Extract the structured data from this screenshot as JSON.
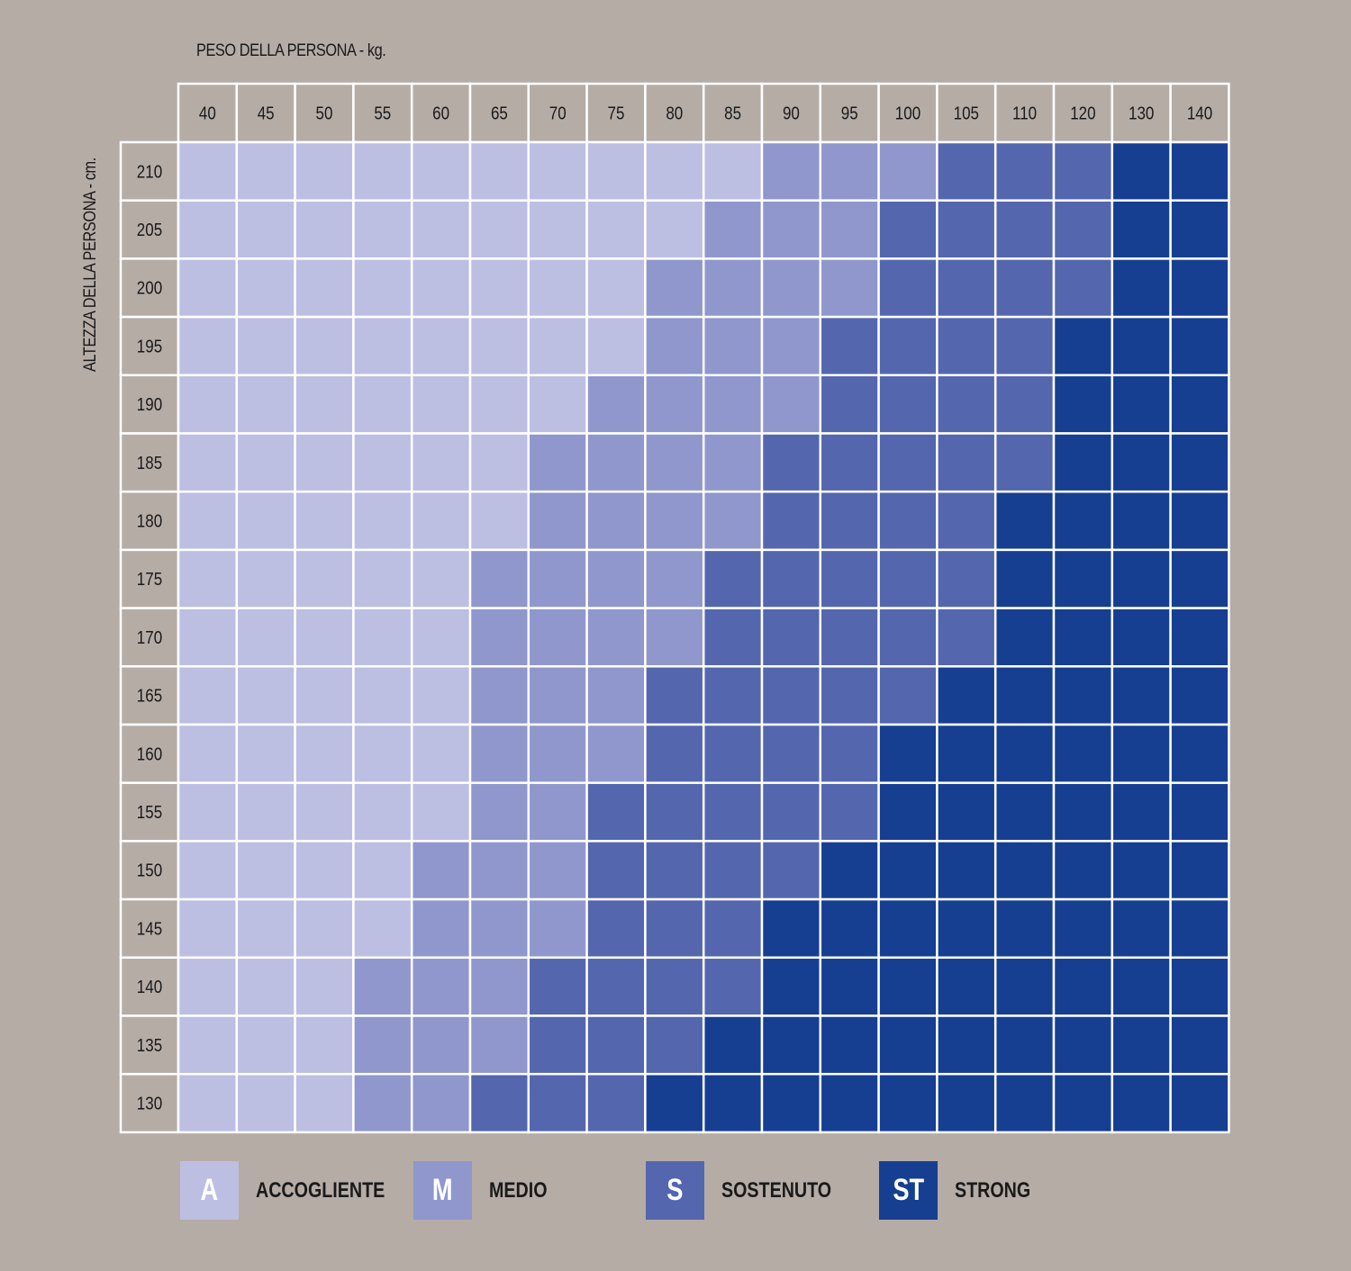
{
  "chart_data": {
    "type": "heatmap",
    "xlabel": "PESO DELLA PERSONA - kg.",
    "ylabel": "ALTEZZA DELLA PERSONA - cm.",
    "x": [
      "40",
      "45",
      "50",
      "55",
      "60",
      "65",
      "70",
      "75",
      "80",
      "85",
      "90",
      "95",
      "100",
      "105",
      "110",
      "120",
      "130",
      "140"
    ],
    "y": [
      "210",
      "205",
      "200",
      "195",
      "190",
      "185",
      "180",
      "175",
      "170",
      "165",
      "160",
      "155",
      "150",
      "145",
      "140",
      "135",
      "130"
    ],
    "levels": [
      {
        "code": "A",
        "label": "ACCOGLIENTE",
        "color": "#bcbfe2"
      },
      {
        "code": "M",
        "label": "MEDIO",
        "color": "#8f97cc"
      },
      {
        "code": "S",
        "label": "SOSTENUTO",
        "color": "#5466ae"
      },
      {
        "code": "ST",
        "label": "STRONG",
        "color": "#163f92"
      }
    ],
    "cells": [
      [
        "A",
        "A",
        "A",
        "A",
        "A",
        "A",
        "A",
        "A",
        "A",
        "A",
        "M",
        "M",
        "M",
        "S",
        "S",
        "S",
        "ST",
        "ST"
      ],
      [
        "A",
        "A",
        "A",
        "A",
        "A",
        "A",
        "A",
        "A",
        "A",
        "M",
        "M",
        "M",
        "S",
        "S",
        "S",
        "S",
        "ST",
        "ST"
      ],
      [
        "A",
        "A",
        "A",
        "A",
        "A",
        "A",
        "A",
        "A",
        "M",
        "M",
        "M",
        "M",
        "S",
        "S",
        "S",
        "S",
        "ST",
        "ST"
      ],
      [
        "A",
        "A",
        "A",
        "A",
        "A",
        "A",
        "A",
        "A",
        "M",
        "M",
        "M",
        "S",
        "S",
        "S",
        "S",
        "ST",
        "ST",
        "ST"
      ],
      [
        "A",
        "A",
        "A",
        "A",
        "A",
        "A",
        "A",
        "M",
        "M",
        "M",
        "M",
        "S",
        "S",
        "S",
        "S",
        "ST",
        "ST",
        "ST"
      ],
      [
        "A",
        "A",
        "A",
        "A",
        "A",
        "A",
        "M",
        "M",
        "M",
        "M",
        "S",
        "S",
        "S",
        "S",
        "S",
        "ST",
        "ST",
        "ST"
      ],
      [
        "A",
        "A",
        "A",
        "A",
        "A",
        "A",
        "M",
        "M",
        "M",
        "M",
        "S",
        "S",
        "S",
        "S",
        "ST",
        "ST",
        "ST",
        "ST"
      ],
      [
        "A",
        "A",
        "A",
        "A",
        "A",
        "M",
        "M",
        "M",
        "M",
        "S",
        "S",
        "S",
        "S",
        "S",
        "ST",
        "ST",
        "ST",
        "ST"
      ],
      [
        "A",
        "A",
        "A",
        "A",
        "A",
        "M",
        "M",
        "M",
        "M",
        "S",
        "S",
        "S",
        "S",
        "S",
        "ST",
        "ST",
        "ST",
        "ST"
      ],
      [
        "A",
        "A",
        "A",
        "A",
        "A",
        "M",
        "M",
        "M",
        "S",
        "S",
        "S",
        "S",
        "S",
        "ST",
        "ST",
        "ST",
        "ST",
        "ST"
      ],
      [
        "A",
        "A",
        "A",
        "A",
        "A",
        "M",
        "M",
        "M",
        "S",
        "S",
        "S",
        "S",
        "ST",
        "ST",
        "ST",
        "ST",
        "ST",
        "ST"
      ],
      [
        "A",
        "A",
        "A",
        "A",
        "A",
        "M",
        "M",
        "S",
        "S",
        "S",
        "S",
        "S",
        "ST",
        "ST",
        "ST",
        "ST",
        "ST",
        "ST"
      ],
      [
        "A",
        "A",
        "A",
        "A",
        "M",
        "M",
        "M",
        "S",
        "S",
        "S",
        "S",
        "ST",
        "ST",
        "ST",
        "ST",
        "ST",
        "ST",
        "ST"
      ],
      [
        "A",
        "A",
        "A",
        "A",
        "M",
        "M",
        "M",
        "S",
        "S",
        "S",
        "ST",
        "ST",
        "ST",
        "ST",
        "ST",
        "ST",
        "ST",
        "ST"
      ],
      [
        "A",
        "A",
        "A",
        "M",
        "M",
        "M",
        "S",
        "S",
        "S",
        "S",
        "ST",
        "ST",
        "ST",
        "ST",
        "ST",
        "ST",
        "ST",
        "ST"
      ],
      [
        "A",
        "A",
        "A",
        "M",
        "M",
        "M",
        "S",
        "S",
        "S",
        "ST",
        "ST",
        "ST",
        "ST",
        "ST",
        "ST",
        "ST",
        "ST",
        "ST"
      ],
      [
        "A",
        "A",
        "A",
        "M",
        "M",
        "S",
        "S",
        "S",
        "ST",
        "ST",
        "ST",
        "ST",
        "ST",
        "ST",
        "ST",
        "ST",
        "ST",
        "ST"
      ]
    ],
    "grid": true,
    "legend": "bottom"
  }
}
